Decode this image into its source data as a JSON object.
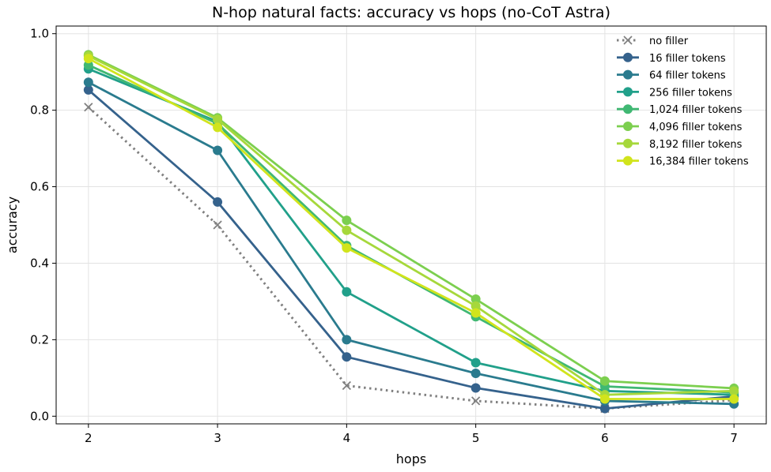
{
  "chart_data": {
    "type": "line",
    "title": "N-hop natural facts: accuracy vs hops (no-CoT Astra)",
    "xlabel": "hops",
    "ylabel": "accuracy",
    "x": [
      2,
      3,
      4,
      5,
      6,
      7
    ],
    "xticks": [
      "2",
      "3",
      "4",
      "5",
      "6",
      "7"
    ],
    "xlim": [
      1.75,
      7.25
    ],
    "ylim": [
      -0.02,
      1.02
    ],
    "yticks": [
      "0.0",
      "0.2",
      "0.4",
      "0.6",
      "0.8",
      "1.0"
    ],
    "ytick_values": [
      0.0,
      0.2,
      0.4,
      0.6,
      0.8,
      1.0
    ],
    "grid": true,
    "legend_position": "top-right",
    "series": [
      {
        "name": "no filler",
        "values": [
          0.808,
          0.5,
          0.08,
          0.04,
          0.02,
          0.042
        ],
        "color": "#808080",
        "style": "dotted",
        "marker": "x"
      },
      {
        "name": "16 filler tokens",
        "values": [
          0.853,
          0.56,
          0.155,
          0.074,
          0.02,
          0.052
        ],
        "color": "#35628c",
        "style": "solid",
        "marker": "circle"
      },
      {
        "name": "64 filler tokens",
        "values": [
          0.873,
          0.695,
          0.2,
          0.112,
          0.04,
          0.032
        ],
        "color": "#2a7b8e",
        "style": "solid",
        "marker": "circle"
      },
      {
        "name": "256 filler tokens",
        "values": [
          0.908,
          0.77,
          0.325,
          0.14,
          0.066,
          0.056
        ],
        "color": "#21a08a",
        "style": "solid",
        "marker": "circle"
      },
      {
        "name": "1,024 filler tokens",
        "values": [
          0.918,
          0.765,
          0.446,
          0.26,
          0.078,
          0.062
        ],
        "color": "#40b873",
        "style": "solid",
        "marker": "circle"
      },
      {
        "name": "4,096 filler tokens",
        "values": [
          0.945,
          0.78,
          0.512,
          0.306,
          0.092,
          0.073
        ],
        "color": "#7ccf4f",
        "style": "solid",
        "marker": "circle"
      },
      {
        "name": "8,192 filler tokens",
        "values": [
          0.942,
          0.776,
          0.486,
          0.288,
          0.056,
          0.066
        ],
        "color": "#a6d83b",
        "style": "solid",
        "marker": "circle"
      },
      {
        "name": "16,384 filler tokens",
        "values": [
          0.935,
          0.755,
          0.44,
          0.27,
          0.045,
          0.045
        ],
        "color": "#d1e41c",
        "style": "solid",
        "marker": "circle"
      }
    ]
  }
}
